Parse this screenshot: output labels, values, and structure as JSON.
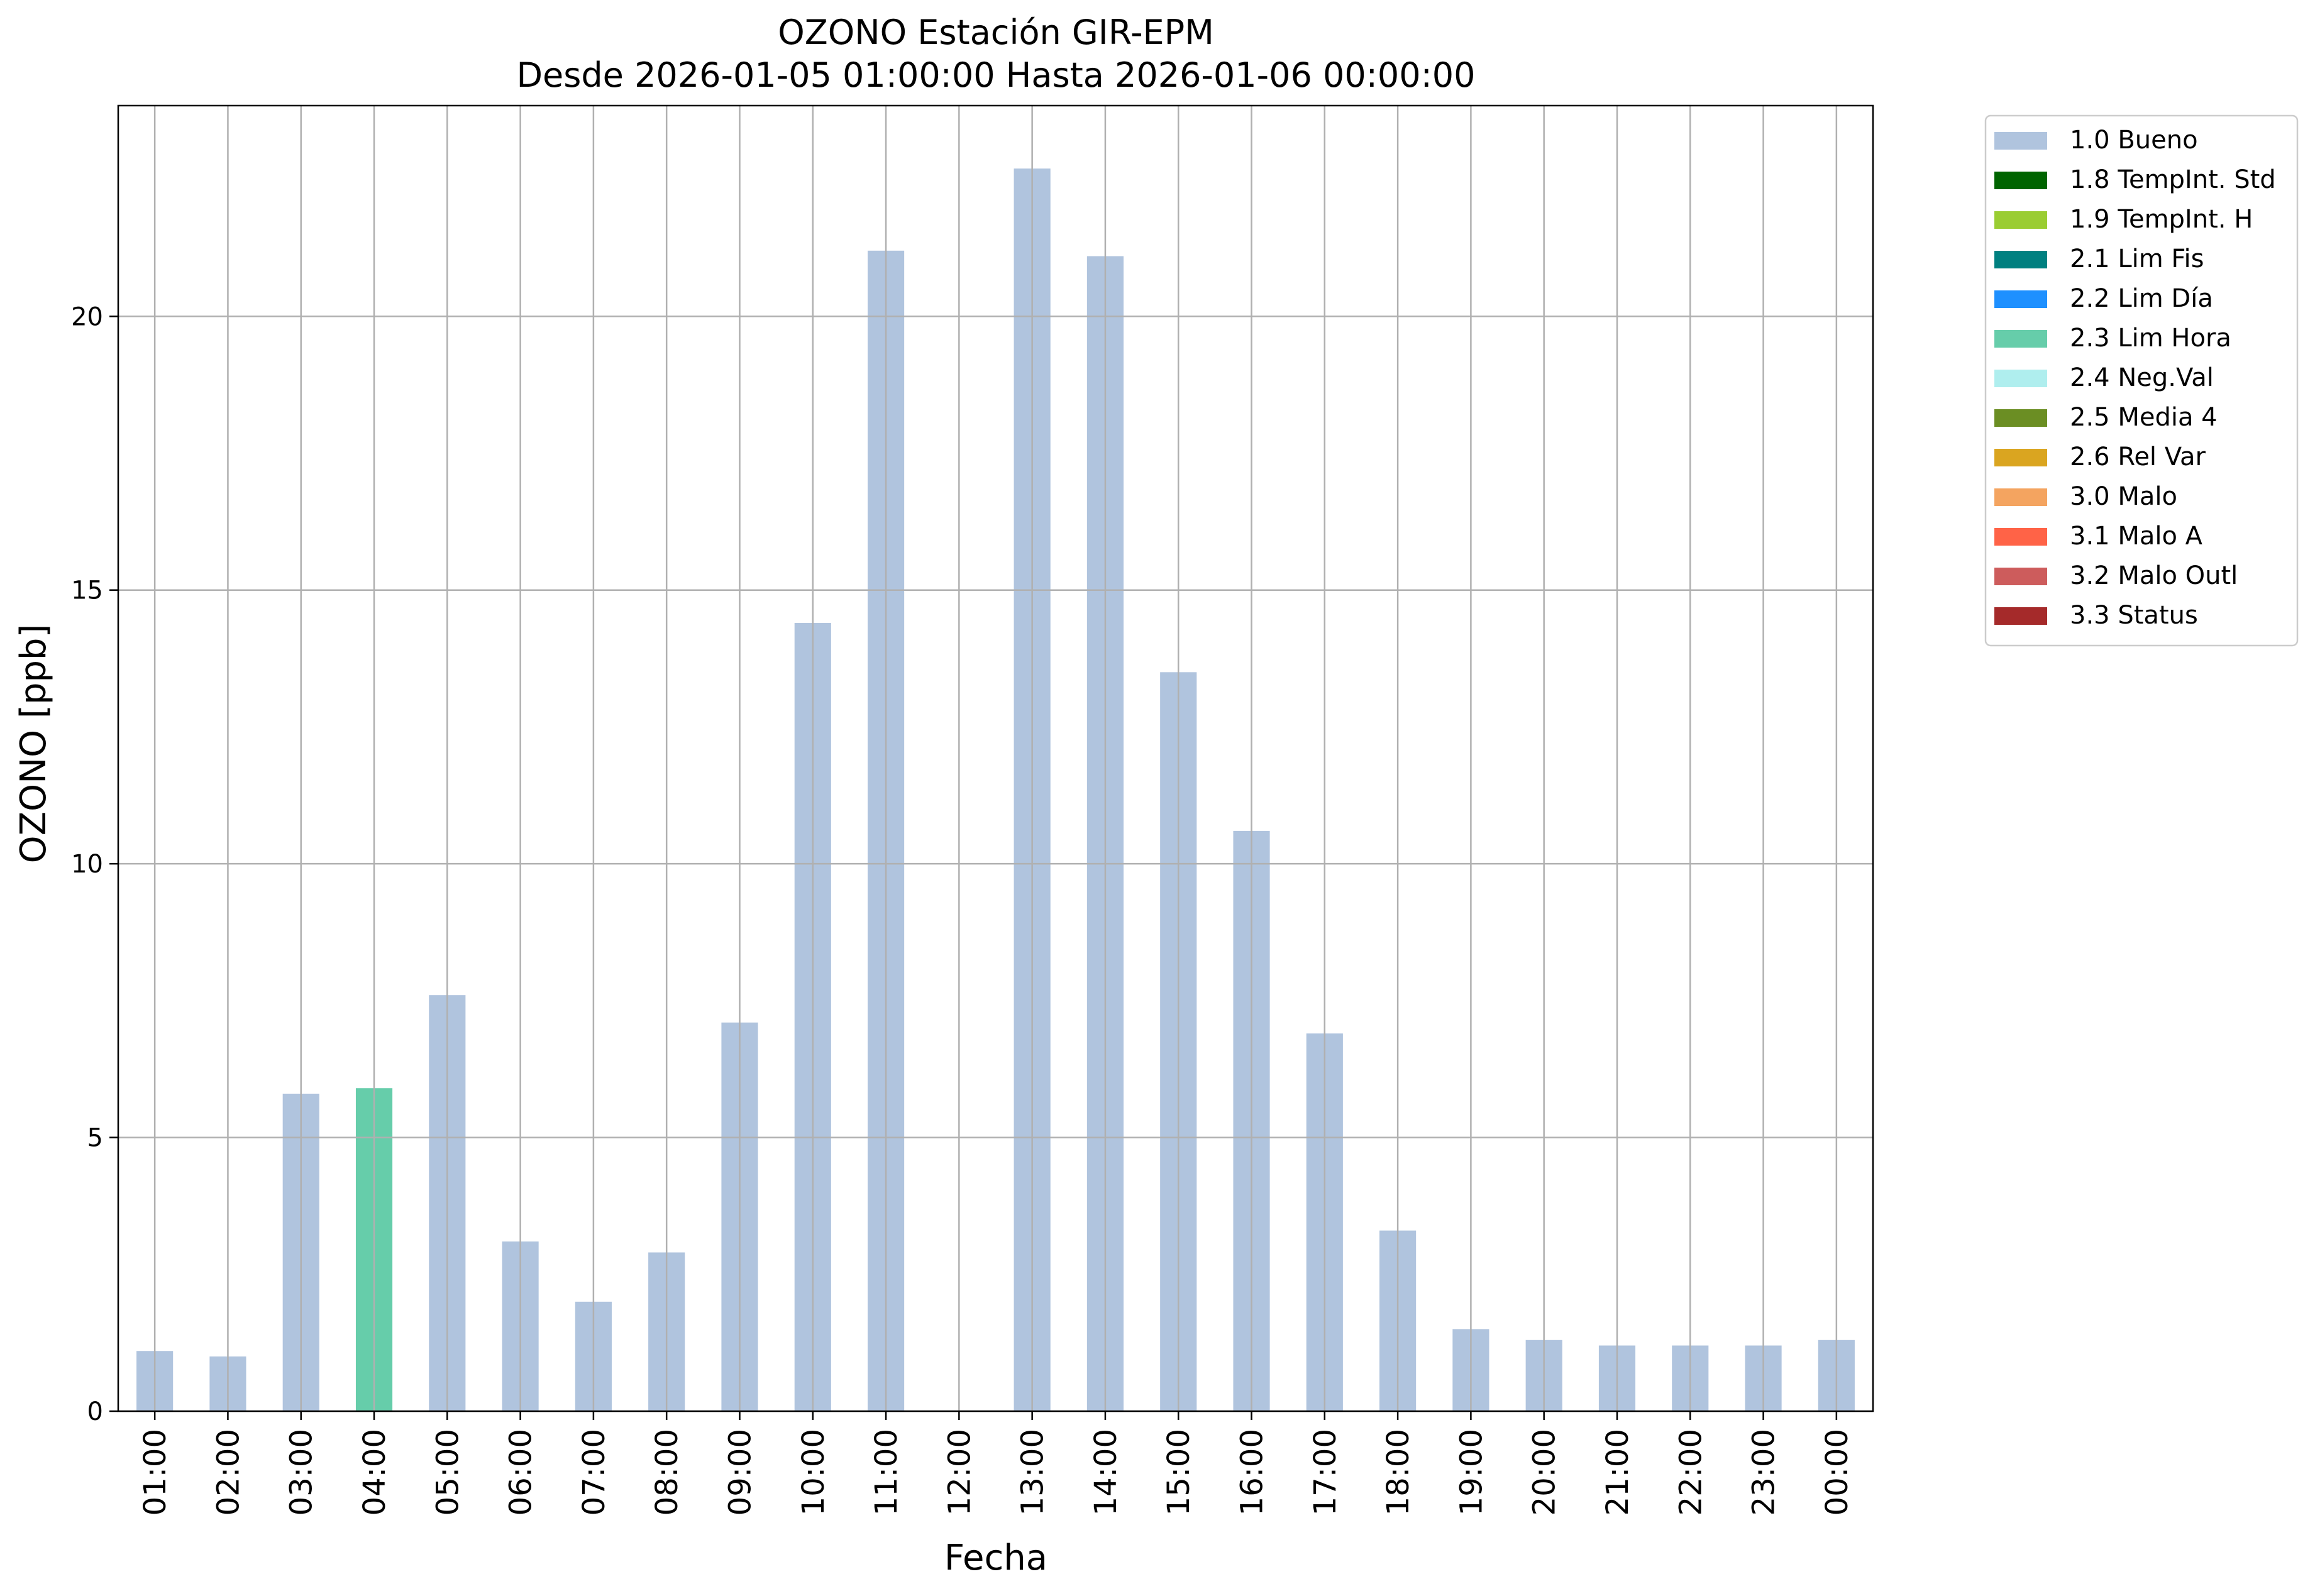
{
  "chart_data": {
    "type": "bar",
    "title": "OZONO Estación GIR-EPM",
    "subtitle": "Desde 2026-01-05 01:00:00 Hasta 2026-01-06 00:00:00",
    "xlabel": "Fecha",
    "ylabel": "OZONO [ppb]",
    "ylim": [
      0,
      23.85
    ],
    "yticks": [
      0,
      5,
      10,
      15,
      20
    ],
    "grid": true,
    "legend_position": "outside-right",
    "categories": [
      "01:00",
      "02:00",
      "03:00",
      "04:00",
      "05:00",
      "06:00",
      "07:00",
      "08:00",
      "09:00",
      "10:00",
      "11:00",
      "12:00",
      "13:00",
      "14:00",
      "15:00",
      "16:00",
      "17:00",
      "18:00",
      "19:00",
      "20:00",
      "21:00",
      "22:00",
      "23:00",
      "00:00"
    ],
    "values": [
      1.1,
      1.0,
      5.8,
      5.9,
      7.6,
      3.1,
      2.0,
      2.9,
      7.1,
      14.4,
      21.2,
      null,
      22.7,
      21.1,
      13.5,
      10.6,
      6.9,
      3.3,
      1.5,
      1.3,
      1.2,
      1.2,
      1.2,
      1.3
    ],
    "flags": [
      "1.0 Bueno",
      "1.0 Bueno",
      "1.0 Bueno",
      "2.3 Lim Hora",
      "1.0 Bueno",
      "1.0 Bueno",
      "1.0 Bueno",
      "1.0 Bueno",
      "1.0 Bueno",
      "1.0 Bueno",
      "1.0 Bueno",
      null,
      "1.0 Bueno",
      "1.0 Bueno",
      "1.0 Bueno",
      "1.0 Bueno",
      "1.0 Bueno",
      "1.0 Bueno",
      "1.0 Bueno",
      "1.0 Bueno",
      "1.0 Bueno",
      "1.0 Bueno",
      "1.0 Bueno",
      "1.0 Bueno"
    ],
    "legend": [
      {
        "label": "1.0 Bueno",
        "color": "#b0c4de"
      },
      {
        "label": "1.8 TempInt. Std",
        "color": "#006400"
      },
      {
        "label": "1.9 TempInt. H",
        "color": "#9acd32"
      },
      {
        "label": "2.1 Lim Fis",
        "color": "#008080"
      },
      {
        "label": "2.2 Lim Día",
        "color": "#1e90ff"
      },
      {
        "label": "2.3 Lim Hora",
        "color": "#66cdaa"
      },
      {
        "label": "2.4 Neg.Val",
        "color": "#afeeee"
      },
      {
        "label": "2.5 Media 4",
        "color": "#6b8e23"
      },
      {
        "label": "2.6 Rel Var",
        "color": "#daa520"
      },
      {
        "label": "3.0 Malo",
        "color": "#f4a460"
      },
      {
        "label": "3.1 Malo A",
        "color": "#ff6347"
      },
      {
        "label": "3.2 Malo Outl",
        "color": "#cd5c5c"
      },
      {
        "label": "3.3 Status",
        "color": "#a52a2a"
      }
    ]
  }
}
